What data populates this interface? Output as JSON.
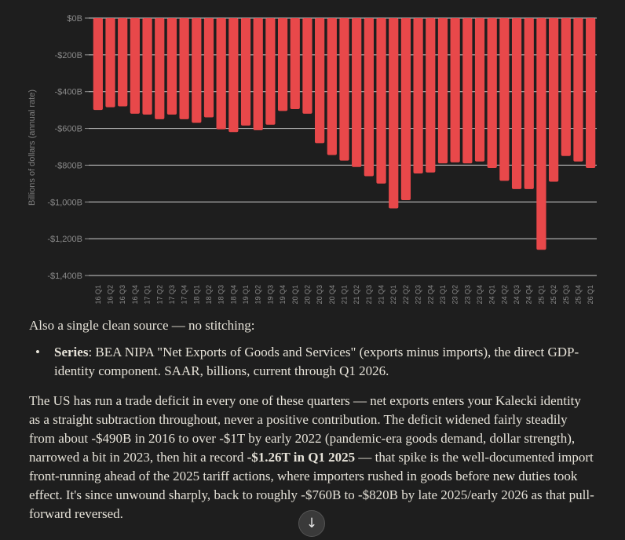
{
  "chart_data": {
    "type": "bar",
    "ylabel": "Billions of dollars (annual rate)",
    "ylim": [
      -1400,
      0
    ],
    "yticks": [
      0,
      -200,
      -400,
      -600,
      -800,
      -1000,
      -1200,
      -1400
    ],
    "ytick_labels": [
      "$0B",
      "-$200B",
      "-$400B",
      "-$600B",
      "-$800B",
      "-$1,000B",
      "-$1,200B",
      "-$1,400B"
    ],
    "grid": true,
    "bar_color": "#e8484a",
    "categories": [
      "16 Q1",
      "16 Q2",
      "16 Q3",
      "16 Q4",
      "17 Q1",
      "17 Q2",
      "17 Q3",
      "17 Q4",
      "18 Q1",
      "18 Q2",
      "18 Q3",
      "18 Q4",
      "19 Q1",
      "19 Q2",
      "19 Q3",
      "19 Q4",
      "20 Q1",
      "20 Q2",
      "20 Q3",
      "20 Q4",
      "21 Q1",
      "21 Q2",
      "21 Q3",
      "21 Q4",
      "22 Q1",
      "22 Q2",
      "22 Q3",
      "22 Q4",
      "23 Q1",
      "23 Q2",
      "23 Q3",
      "23 Q4",
      "24 Q1",
      "24 Q2",
      "24 Q3",
      "24 Q4",
      "25 Q1",
      "25 Q2",
      "25 Q3",
      "25 Q4",
      "26 Q1"
    ],
    "values": [
      -500,
      -485,
      -480,
      -520,
      -525,
      -550,
      -525,
      -550,
      -570,
      -540,
      -605,
      -620,
      -585,
      -610,
      -580,
      -505,
      -495,
      -520,
      -680,
      -745,
      -775,
      -810,
      -860,
      -900,
      -1035,
      -990,
      -845,
      -840,
      -790,
      -785,
      -790,
      -780,
      -815,
      -885,
      -930,
      -930,
      -1260,
      -890,
      -750,
      -780,
      -815
    ]
  },
  "text": {
    "intro": "Also a single clean source — no stitching:",
    "bullet_label": "Series",
    "bullet_text": ": BEA NIPA \"Net Exports of Goods and Services\" (exports minus imports), the direct GDP-identity component. SAAR, billions, current through Q1 2026.",
    "para_part1": "The US has run a trade deficit in every one of these quarters — net exports enters your Kalecki identity as a straight subtraction throughout, never a positive contribution. The deficit widened fairly steadily from about -$490B in 2016 to over -$1T by early 2022 (pandemic-era goods demand, dollar strength), narrowed a bit in 2023, then hit a record ",
    "para_bold": "-$1.26T in Q1 2025",
    "para_part2": " — that spike is the well-documented import front-running ahead of the 2025 tariff actions, where importers rushed in goods before new duties took effect. It's since unwound sharply, back to roughly -$760B to -$820B by late 2025/early 2026 as that pull-forward reversed."
  },
  "scroll_button": {
    "icon": "arrow-down-icon",
    "glyph": "↓"
  }
}
